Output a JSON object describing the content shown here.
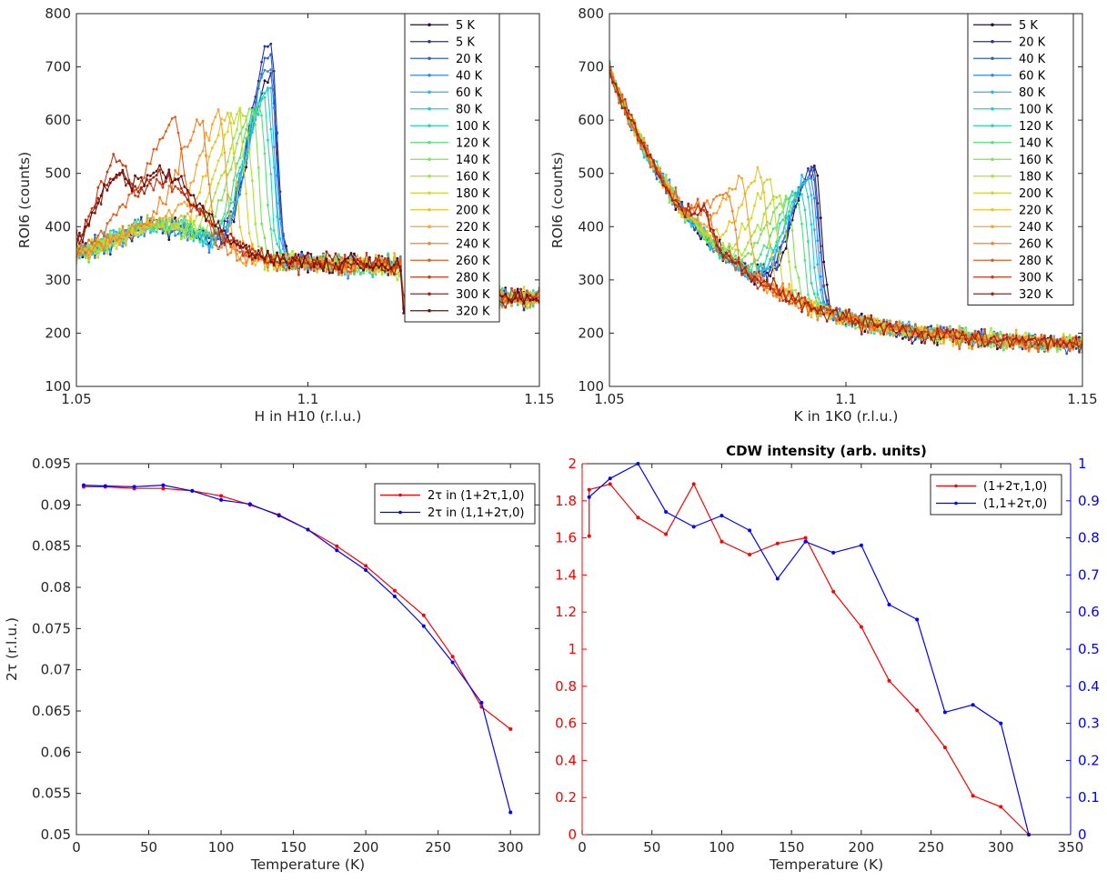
{
  "chart_data": [
    {
      "type": "line",
      "xlabel": "H in H10 (r.l.u.)",
      "ylabel": "ROI6 (counts)",
      "xlim": [
        1.05,
        1.15
      ],
      "ylim": [
        100,
        800
      ],
      "xticks": [
        1.05,
        1.1,
        1.15
      ],
      "xtick_labels": [
        "1.05",
        "1.1",
        "1.15"
      ],
      "yticks": [
        100,
        200,
        300,
        400,
        500,
        600,
        700,
        800
      ],
      "legend": "top-right",
      "series": [
        {
          "name": "5 K",
          "color": "#2a0a40",
          "peak_x": 1.092,
          "peak_y": 680
        },
        {
          "name": "5 K",
          "color": "#2a3290",
          "peak_x": 1.092,
          "peak_y": 745
        },
        {
          "name": "20 K",
          "color": "#2f5fd2",
          "peak_x": 1.092,
          "peak_y": 720
        },
        {
          "name": "40 K",
          "color": "#3588f0",
          "peak_x": 1.0918,
          "peak_y": 690
        },
        {
          "name": "60 K",
          "color": "#2bb2f0",
          "peak_x": 1.0915,
          "peak_y": 670
        },
        {
          "name": "80 K",
          "color": "#1dcfd6",
          "peak_x": 1.0912,
          "peak_y": 650
        },
        {
          "name": "100 K",
          "color": "#28d8a6",
          "peak_x": 1.0905,
          "peak_y": 640
        },
        {
          "name": "120 K",
          "color": "#52e07a",
          "peak_x": 1.0895,
          "peak_y": 630
        },
        {
          "name": "140 K",
          "color": "#7ee452",
          "peak_x": 1.088,
          "peak_y": 620
        },
        {
          "name": "160 K",
          "color": "#a8e33a",
          "peak_x": 1.0865,
          "peak_y": 612
        },
        {
          "name": "180 K",
          "color": "#cfd830",
          "peak_x": 1.085,
          "peak_y": 615
        },
        {
          "name": "200 K",
          "color": "#ecc22c",
          "peak_x": 1.083,
          "peak_y": 610
        },
        {
          "name": "220 K",
          "color": "#f7a42a",
          "peak_x": 1.081,
          "peak_y": 605
        },
        {
          "name": "240 K",
          "color": "#f48226",
          "peak_x": 1.077,
          "peak_y": 600
        },
        {
          "name": "260 K",
          "color": "#e65c1f",
          "peak_x": 1.0715,
          "peak_y": 590
        },
        {
          "name": "280 K",
          "color": "#c93a16",
          "peak_x": 1.06,
          "peak_y": 520
        },
        {
          "name": "300 K",
          "color": "#a3200f",
          "peak_x": 1.06,
          "peak_y": 500
        },
        {
          "name": "320 K",
          "color": "#6b0f0c",
          "peak_x": 1.06,
          "peak_y": 500
        }
      ]
    },
    {
      "type": "line",
      "xlabel": "K in 1K0 (r.l.u.)",
      "ylabel": "ROI6 (counts)",
      "xlim": [
        1.05,
        1.15
      ],
      "ylim": [
        100,
        800
      ],
      "xticks": [
        1.05,
        1.1,
        1.15
      ],
      "xtick_labels": [
        "1.05",
        "1.1",
        "1.15"
      ],
      "yticks": [
        100,
        200,
        300,
        400,
        500,
        600,
        700,
        800
      ],
      "legend": "top-right",
      "series": [
        {
          "name": "5 K",
          "color": "#2a0a40",
          "peak_x": 1.0935,
          "peak_y": 510
        },
        {
          "name": "20 K",
          "color": "#2a3290",
          "peak_x": 1.093,
          "peak_y": 515
        },
        {
          "name": "40 K",
          "color": "#2f5fd2",
          "peak_x": 1.093,
          "peak_y": 505
        },
        {
          "name": "60 K",
          "color": "#3588f0",
          "peak_x": 1.0925,
          "peak_y": 495
        },
        {
          "name": "80 K",
          "color": "#2bb2f0",
          "peak_x": 1.092,
          "peak_y": 490
        },
        {
          "name": "100 K",
          "color": "#1dcfd6",
          "peak_x": 1.0915,
          "peak_y": 480
        },
        {
          "name": "120 K",
          "color": "#28d8a6",
          "peak_x": 1.0905,
          "peak_y": 470
        },
        {
          "name": "140 K",
          "color": "#52e07a",
          "peak_x": 1.0895,
          "peak_y": 470
        },
        {
          "name": "160 K",
          "color": "#7ee452",
          "peak_x": 1.0875,
          "peak_y": 460
        },
        {
          "name": "180 K",
          "color": "#a8e33a",
          "peak_x": 1.086,
          "peak_y": 460
        },
        {
          "name": "200 K",
          "color": "#cfd830",
          "peak_x": 1.084,
          "peak_y": 480
        },
        {
          "name": "220 K",
          "color": "#ecc22c",
          "peak_x": 1.082,
          "peak_y": 500
        },
        {
          "name": "240 K",
          "color": "#f7a42a",
          "peak_x": 1.078,
          "peak_y": 485
        },
        {
          "name": "260 K",
          "color": "#f48226",
          "peak_x": 1.075,
          "peak_y": 470
        },
        {
          "name": "280 K",
          "color": "#e65c1f",
          "peak_x": 1.07,
          "peak_y": 440
        },
        {
          "name": "300 K",
          "color": "#c93a16",
          "peak_x": 1.07,
          "peak_y": 430
        },
        {
          "name": "320 K",
          "color": "#a3200f",
          "peak_x": 1.07,
          "peak_y": 430
        }
      ]
    },
    {
      "type": "line",
      "xlabel": "Temperature (K)",
      "ylabel": "2τ (r.l.u.)",
      "xlim": [
        0,
        320
      ],
      "ylim": [
        0.05,
        0.095
      ],
      "xticks": [
        0,
        50,
        100,
        150,
        200,
        250,
        300
      ],
      "yticks": [
        0.05,
        0.055,
        0.06,
        0.065,
        0.07,
        0.075,
        0.08,
        0.085,
        0.09,
        0.095
      ],
      "ytick_labels": [
        "0.05",
        "0.055",
        "0.06",
        "0.065",
        "0.07",
        "0.075",
        "0.08",
        "0.085",
        "0.09",
        "0.095"
      ],
      "legend": "top-right",
      "series": [
        {
          "name": "2τ in (1+2τ,1,0)",
          "color": "#ff0000",
          "x": [
            5,
            20,
            40,
            60,
            80,
            100,
            120,
            140,
            160,
            180,
            200,
            220,
            240,
            260,
            280,
            300
          ],
          "y": [
            0.0922,
            0.0922,
            0.092,
            0.092,
            0.0917,
            0.0911,
            0.09,
            0.0888,
            0.087,
            0.085,
            0.0826,
            0.0796,
            0.0766,
            0.0716,
            0.0655,
            0.0628
          ]
        },
        {
          "name": "2τ in (1,1+2τ,0)",
          "color": "#0000ff",
          "x": [
            5,
            20,
            40,
            60,
            80,
            100,
            120,
            140,
            160,
            180,
            200,
            220,
            240,
            260,
            280,
            300
          ],
          "y": [
            0.0924,
            0.0923,
            0.0922,
            0.0924,
            0.0917,
            0.0906,
            0.0901,
            0.0887,
            0.087,
            0.0845,
            0.0821,
            0.0789,
            0.0753,
            0.0709,
            0.066,
            0.0527
          ]
        }
      ]
    },
    {
      "type": "line",
      "title": "CDW intensity (arb. units)",
      "xlabel": "Temperature (K)",
      "xlim": [
        0,
        350
      ],
      "ylim_left": [
        0,
        2
      ],
      "ylim_right": [
        0,
        1
      ],
      "xticks": [
        0,
        50,
        100,
        150,
        200,
        250,
        300,
        350
      ],
      "yticks_left": [
        0,
        0.2,
        0.4,
        0.6,
        0.8,
        1,
        1.2,
        1.4,
        1.6,
        1.8,
        2
      ],
      "yticks_right": [
        0,
        0.1,
        0.2,
        0.3,
        0.4,
        0.5,
        0.6,
        0.7,
        0.8,
        0.9,
        1
      ],
      "legend": "top-right",
      "series": [
        {
          "name": "(1+2τ,1,0)",
          "color": "#ff0000",
          "axis": "left",
          "x": [
            5,
            5,
            20,
            40,
            60,
            80,
            100,
            120,
            140,
            160,
            180,
            200,
            220,
            240,
            260,
            280,
            300,
            320
          ],
          "y": [
            1.61,
            1.86,
            1.89,
            1.71,
            1.62,
            1.89,
            1.58,
            1.51,
            1.57,
            1.6,
            1.31,
            1.12,
            0.83,
            0.67,
            0.47,
            0.21,
            0.15,
            0.0
          ]
        },
        {
          "name": "(1,1+2τ,0)",
          "color": "#0000ff",
          "axis": "right",
          "x": [
            5,
            20,
            40,
            60,
            80,
            100,
            120,
            140,
            160,
            180,
            200,
            220,
            240,
            260,
            280,
            300,
            320
          ],
          "y": [
            0.91,
            0.96,
            1.0,
            0.87,
            0.83,
            0.86,
            0.82,
            0.69,
            0.79,
            0.76,
            0.78,
            0.62,
            0.58,
            0.33,
            0.35,
            0.3,
            0.0
          ]
        }
      ]
    }
  ]
}
